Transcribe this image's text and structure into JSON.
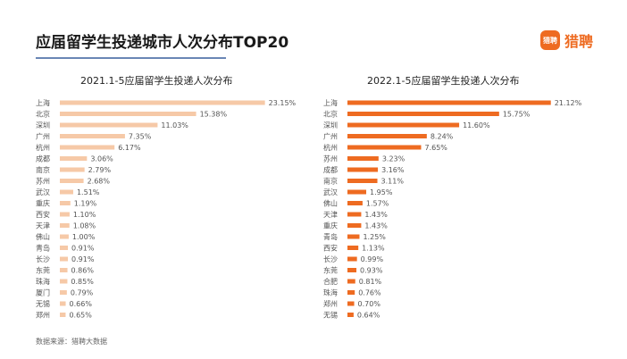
{
  "header": {
    "title": "应届留学生投递城市人次分布TOP20",
    "logo_badge": "猎聘",
    "logo_text": "猎聘"
  },
  "colors": {
    "accent": "#ee6b21",
    "underline_left": "#6a86b5",
    "bar_2021": "#f6c9a7",
    "bar_2022": "#ee6b21"
  },
  "chart_data": [
    {
      "type": "bar",
      "orientation": "horizontal",
      "title": "2021.1-5应届留学生投递人次分布",
      "categories": [
        "上海",
        "北京",
        "深圳",
        "广州",
        "杭州",
        "成都",
        "南京",
        "苏州",
        "武汉",
        "重庆",
        "西安",
        "天津",
        "佛山",
        "青岛",
        "长沙",
        "东莞",
        "珠海",
        "厦门",
        "无锡",
        "郑州"
      ],
      "values": [
        23.15,
        15.38,
        11.03,
        7.35,
        6.17,
        3.06,
        2.79,
        2.68,
        1.51,
        1.19,
        1.1,
        1.08,
        1.0,
        0.91,
        0.91,
        0.86,
        0.85,
        0.79,
        0.66,
        0.65
      ],
      "labels": [
        "23.15%",
        "15.38%",
        "11.03%",
        "7.35%",
        "6.17%",
        "3.06%",
        "2.79%",
        "2.68%",
        "1.51%",
        "1.19%",
        "1.10%",
        "1.08%",
        "1.00%",
        "0.91%",
        "0.91%",
        "0.86%",
        "0.85%",
        "0.79%",
        "0.66%",
        "0.65%"
      ],
      "unit": "%",
      "xlim": [
        0,
        25
      ],
      "grid": false,
      "color": "#f6c9a7"
    },
    {
      "type": "bar",
      "orientation": "horizontal",
      "title": "2022.1-5应届留学生投递人次分布",
      "categories": [
        "上海",
        "北京",
        "深圳",
        "广州",
        "杭州",
        "苏州",
        "成都",
        "南京",
        "武汉",
        "佛山",
        "天津",
        "重庆",
        "青岛",
        "西安",
        "长沙",
        "东莞",
        "合肥",
        "珠海",
        "郑州",
        "无锡"
      ],
      "values": [
        21.12,
        15.75,
        11.6,
        8.24,
        7.65,
        3.23,
        3.16,
        3.11,
        1.95,
        1.57,
        1.43,
        1.43,
        1.25,
        1.13,
        0.99,
        0.93,
        0.81,
        0.76,
        0.7,
        0.64
      ],
      "labels": [
        "21.12%",
        "15.75%",
        "11.60%",
        "8.24%",
        "7.65%",
        "3.23%",
        "3.16%",
        "3.11%",
        "1.95%",
        "1.57%",
        "1.43%",
        "1.43%",
        "1.25%",
        "1.13%",
        "0.99%",
        "0.93%",
        "0.81%",
        "0.76%",
        "0.70%",
        "0.64%"
      ],
      "unit": "%",
      "xlim": [
        0,
        23
      ],
      "grid": false,
      "color": "#ee6b21"
    }
  ],
  "footer": {
    "source": "数据来源：猎聘大数据"
  }
}
